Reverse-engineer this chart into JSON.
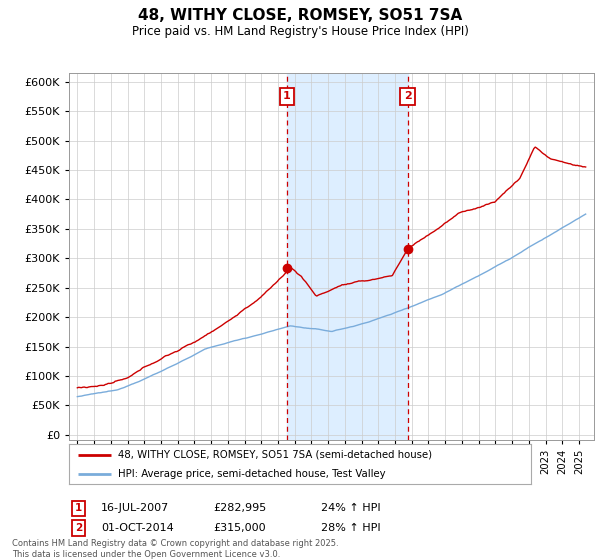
{
  "title": "48, WITHY CLOSE, ROMSEY, SO51 7SA",
  "subtitle": "Price paid vs. HM Land Registry's House Price Index (HPI)",
  "legend_line1": "48, WITHY CLOSE, ROMSEY, SO51 7SA (semi-detached house)",
  "legend_line2": "HPI: Average price, semi-detached house, Test Valley",
  "footnote": "Contains HM Land Registry data © Crown copyright and database right 2025.\nThis data is licensed under the Open Government Licence v3.0.",
  "sale1_date": "16-JUL-2007",
  "sale1_price": "£282,995",
  "sale1_hpi": "24% ↑ HPI",
  "sale2_date": "01-OCT-2014",
  "sale2_price": "£315,000",
  "sale2_hpi": "28% ↑ HPI",
  "red_color": "#cc0000",
  "blue_color": "#7aacdb",
  "shade_color": "#ddeeff",
  "vline_color": "#cc0000",
  "ylim": [
    0,
    600000
  ],
  "yticks": [
    0,
    50000,
    100000,
    150000,
    200000,
    250000,
    300000,
    350000,
    400000,
    450000,
    500000,
    550000,
    600000
  ],
  "sale1_year": 2007.54,
  "sale2_year": 2014.75,
  "sale1_price_val": 282995,
  "sale2_price_val": 315000
}
